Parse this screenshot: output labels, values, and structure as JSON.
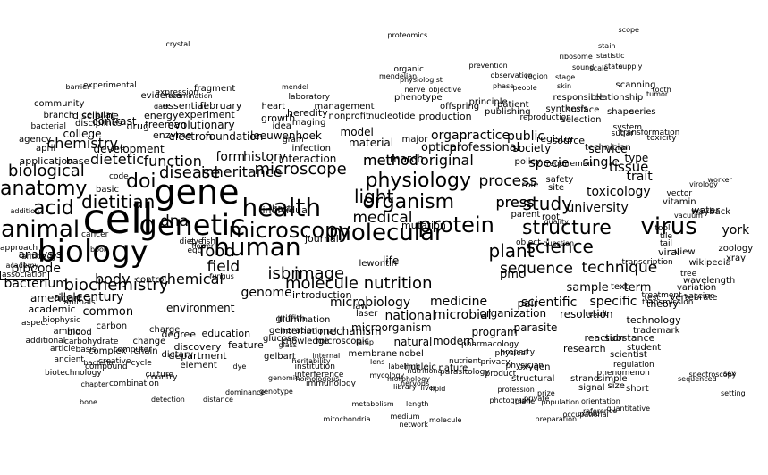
{
  "colors": {
    "text": "#000000",
    "background": "#ffffff"
  },
  "words": [
    "cell",
    "biology",
    "gene",
    "genetic",
    "human",
    "health",
    "animal",
    "molecular",
    "protein",
    "microscopy",
    "virus",
    "physiology",
    "organism",
    "acid",
    "anatomy",
    "structure",
    "science",
    "dietitian",
    "doi",
    "plant",
    "light",
    "study",
    "molecule nutrition",
    "food",
    "biochemistry",
    "isbn",
    "image",
    "microscope",
    "disease",
    "biological",
    "dna",
    "sequence",
    "technique",
    "medical",
    "process",
    "function",
    "inheritance",
    "method",
    "original",
    "press",
    "dietetic",
    "chemistry",
    "body",
    "bacterium",
    "chemical",
    "field",
    "form",
    "history",
    "university",
    "toxicology",
    "scientific",
    "specific",
    "medicine",
    "national",
    "microbial",
    "microbiology",
    "genome",
    "century",
    "analysis",
    "bibcode",
    "organ",
    "practice",
    "public",
    "specie",
    "single",
    "tissue",
    "trait",
    "york",
    "optical",
    "professional",
    "society",
    "service",
    "microorganism",
    "mechanism",
    "natural",
    "modern",
    "program",
    "parasite",
    "organization",
    "resolution",
    "technology",
    "pair",
    "sample",
    "term",
    "theory",
    "research",
    "reaction",
    "substance",
    "common",
    "american",
    "allele",
    "academic",
    "application",
    "base",
    "development",
    "evolutionary",
    "enzyme",
    "electron",
    "foundation",
    "leeuwenhoek",
    "interaction",
    "infection",
    "journal",
    "individual",
    "host",
    "model",
    "material",
    "march",
    "major",
    "laser",
    "law",
    "life",
    "lewontin",
    "mutation",
    "pmc",
    "viral",
    "view",
    "type",
    "source",
    "technician",
    "register",
    "policy",
    "role",
    "site",
    "root",
    "safety",
    "parent",
    "element",
    "environment",
    "degree",
    "education",
    "discovery",
    "feature",
    "department",
    "dietary",
    "college",
    "disciplines",
    "discipline",
    "experiment",
    "essential",
    "february",
    "contrast",
    "drug",
    "freeman",
    "energy",
    "growth",
    "heart",
    "heredity",
    "idea",
    "imaging",
    "laboratory",
    "management",
    "nonprofit",
    "nucleotide",
    "production",
    "offspring",
    "patient",
    "phenotype",
    "principle",
    "publishing",
    "synthesis",
    "surface",
    "selection",
    "responsible",
    "relationship",
    "scanning",
    "shape",
    "series",
    "knowledge",
    "microscopic",
    "membrane",
    "nobel",
    "nucleic",
    "nature",
    "oxygen",
    "structural",
    "strand",
    "simple",
    "signal",
    "size",
    "short",
    "student",
    "scientist",
    "trademark",
    "vitamin",
    "water",
    "wayback",
    "zoology",
    "xray",
    "wikipedia",
    "wavelength",
    "variation",
    "vertebrate",
    "vector",
    "vaccine",
    "transcription",
    "transmission",
    "treatment",
    "tool",
    "tile",
    "tail",
    "tree",
    "test",
    "text",
    "toxicity",
    "transformation",
    "system",
    "sugar",
    "supply",
    "stage",
    "state",
    "statistic",
    "stain",
    "sound",
    "spectroscopy",
    "sequenced",
    "sex",
    "setting",
    "scope",
    "scale",
    "ribosome",
    "result",
    "regulation",
    "reference",
    "quality",
    "question",
    "quantitative",
    "property",
    "product",
    "profession",
    "private",
    "privacy",
    "physician",
    "prize",
    "physical",
    "pharmacology",
    "parasitology",
    "phenomenon",
    "photograph",
    "plane",
    "population",
    "preparation",
    "press",
    "prevention",
    "oxford",
    "orientation",
    "occupational",
    "observation",
    "object",
    "nutrient",
    "nutritional",
    "network",
    "nervous",
    "mycology",
    "morphology",
    "molecule",
    "mitochondria",
    "method",
    "metabolism",
    "medium",
    "library",
    "lipid",
    "liver",
    "limb",
    "lens",
    "length",
    "lamp",
    "label",
    "interference",
    "institution",
    "internal",
    "international",
    "introduction",
    "illumination",
    "immunology",
    "heritability",
    "homologous",
    "gelbart",
    "glucose",
    "genomic",
    "generation",
    "genotype",
    "griffith",
    "glass",
    "fungus",
    "flower",
    "fish",
    "eye",
    "egg",
    "diet",
    "dye",
    "dominance",
    "distance",
    "detection",
    "culture",
    "crystal",
    "control",
    "complex",
    "combination",
    "computer",
    "compound",
    "country",
    "creative",
    "cycle",
    "change",
    "chain",
    "charge",
    "chapter",
    "carbon",
    "carbohydrate",
    "blood",
    "bone",
    "book",
    "biophysic",
    "biotechnology",
    "bacteria",
    "bacterial",
    "branch",
    "barrier",
    "animals",
    "ancient",
    "amino",
    "aspect",
    "article",
    "basis",
    "additional",
    "addition",
    "academy",
    "association",
    "agency",
    "april",
    "antibody",
    "approach",
    "cancer",
    "care",
    "basic",
    "code",
    "cellular",
    "community",
    "expression",
    "examination",
    "experimental",
    "evidence",
    "fragment",
    "dark",
    "gram",
    "mendel",
    "mendelian",
    "organic",
    "physiologist",
    "nerve",
    "objective",
    "phase",
    "people",
    "proteomics",
    "reproduction",
    "requirement",
    "region",
    "skin",
    "tumor",
    "tooth",
    "virology",
    "worker",
    "vacuum"
  ]
}
